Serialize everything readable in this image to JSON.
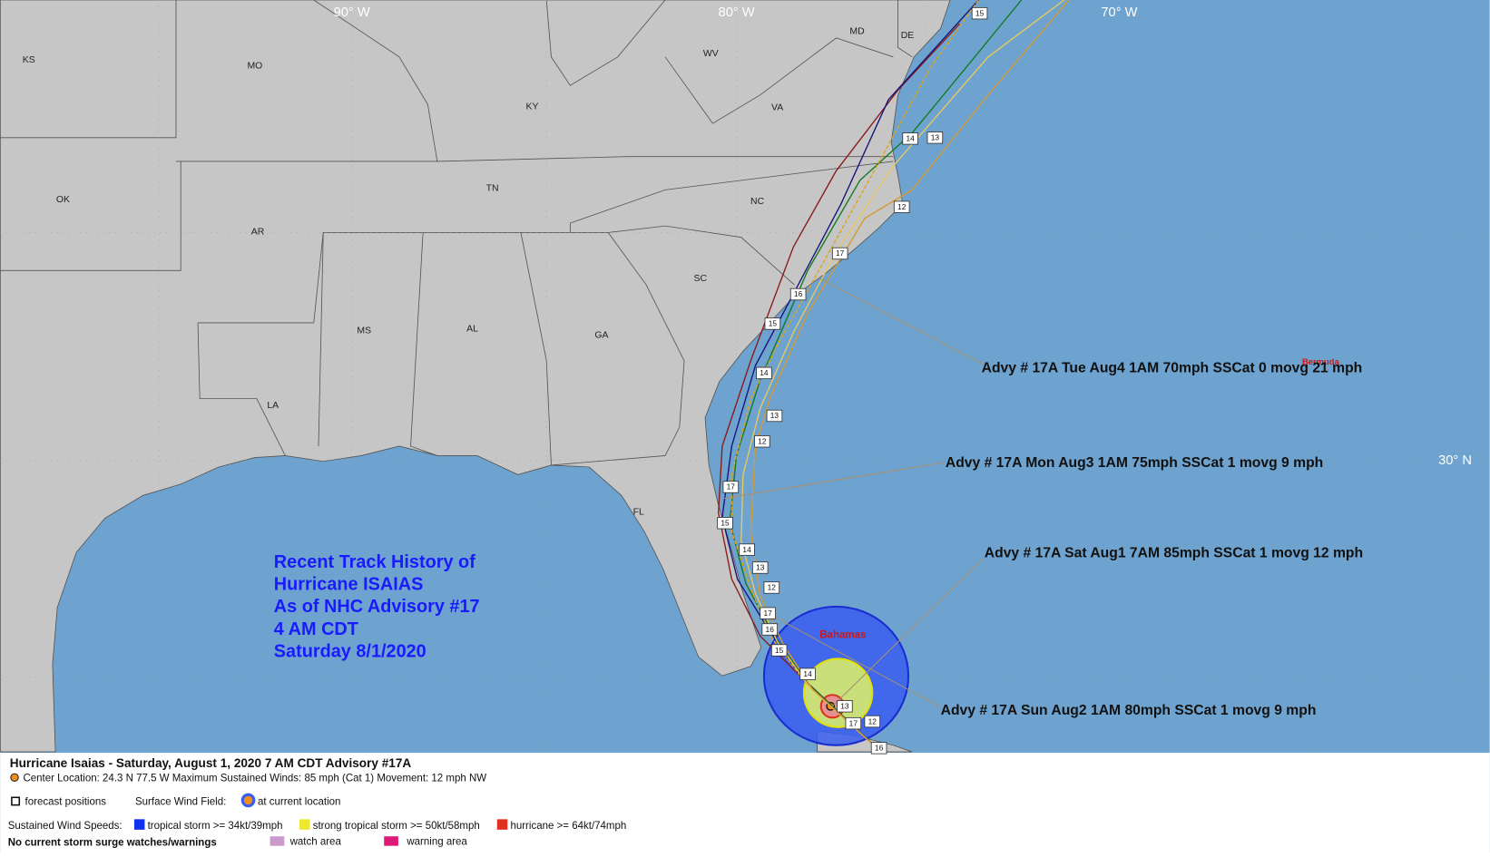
{
  "map": {
    "longitude_labels": [
      "90° W",
      "80° W",
      "70° W"
    ],
    "latitude_labels": [
      "30° N"
    ],
    "state_labels": [
      "KS",
      "MO",
      "OK",
      "AR",
      "LA",
      "MS",
      "AL",
      "TN",
      "KY",
      "GA",
      "SC",
      "NC",
      "VA",
      "WV",
      "MD",
      "DE",
      "FL"
    ],
    "place_labels": [
      "Bahamas",
      "Bermuda"
    ],
    "track_labels": [
      "15",
      "14",
      "13",
      "12",
      "17",
      "16",
      "15",
      "14",
      "13",
      "12",
      "17",
      "15",
      "14",
      "13",
      "12",
      "17",
      "16",
      "15",
      "14",
      "13",
      "12",
      "17",
      "16"
    ]
  },
  "annotations": [
    "Advy # 17A Tue Aug4 1AM  70mph SSCat 0 movg 21 mph",
    "Advy # 17A Mon Aug3 1AM  75mph SSCat 1 movg 9 mph",
    "Advy # 17A Sat Aug1 7AM  85mph SSCat 1 movg 12 mph",
    "Advy # 17A Sun Aug2 1AM  80mph SSCat 1 movg 9 mph"
  ],
  "history_box": [
    "Recent Track History of",
    "Hurricane ISAIAS",
    "As of NHC Advisory #17",
    "4 AM CDT",
    "Saturday 8/1/2020"
  ],
  "footer": {
    "title": "Hurricane Isaias  -  Saturday, August 1, 2020  7 AM CDT   Advisory #17A",
    "center": "Center Location: 24.3 N  77.5 W   Maximum Sustained Winds: 85 mph (Cat 1) Movement: 12 mph NW",
    "forecast_positions": "forecast positions",
    "surface_wind_field": "Surface Wind Field:",
    "current_location": "at current location",
    "wind_speeds": "Sustained Wind Speeds:",
    "tropical_storm": "tropical storm >= 34kt/39mph",
    "strong_tropical_storm": "strong tropical storm >= 50kt/58mph",
    "hurricane": "hurricane >= 64kt/74mph",
    "surge": "No current storm surge watches/warnings",
    "watch": "watch area",
    "warning": "warning area"
  }
}
